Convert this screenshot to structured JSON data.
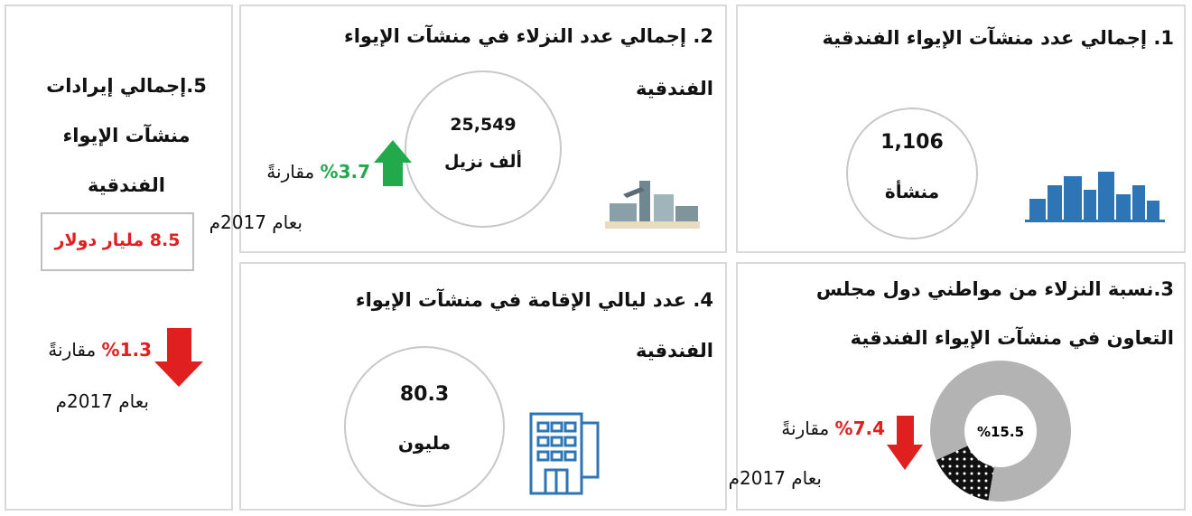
{
  "panel1": {
    "title": "1. إجمالي عدد منشآت الإيواء الفندقية",
    "value": "1,106",
    "unit": "منشأة"
  },
  "panel2": {
    "title_lines": [
      "2. إجمالي عدد النزلاء في منشآت الإيواء",
      "الفندقية"
    ],
    "value": "25,549",
    "unit": "ألف نزيل",
    "change": "%3.7",
    "comparison": "مقارنةً",
    "year": "بعام 2017م"
  },
  "panel3": {
    "title_lines": [
      "3.نسبة النزلاء من مواطني دول مجلس",
      "التعاون في منشآت الإيواء الفندقية"
    ],
    "donut": {
      "type": "pie",
      "values": [
        15.5
      ],
      "value_labels": [
        "%15.5"
      ]
    },
    "change": "%7.4",
    "comparison": "مقارنةً",
    "year": "بعام 2017م"
  },
  "panel4": {
    "title_lines": [
      "4. عدد ليالي الإقامة في منشآت الإيواء",
      "الفندقية"
    ],
    "value": "80.3",
    "unit": "مليون"
  },
  "panel5": {
    "title_lines": [
      "5.إجمالي إيرادات",
      "منشآت الإيواء",
      "الفندقية"
    ],
    "revenue": "8.5 مليار دولار",
    "change": "%1.3",
    "comparison": "مقارنةً",
    "year": "بعام 2017م"
  }
}
